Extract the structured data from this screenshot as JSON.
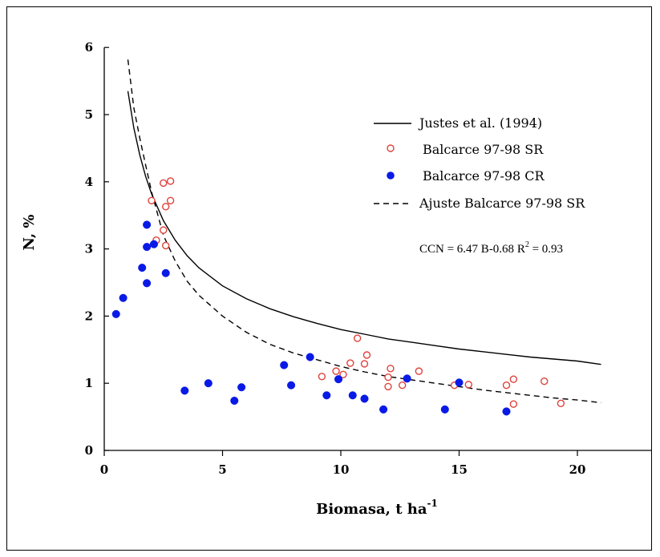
{
  "chart_data": {
    "type": "scatter",
    "xlabel": "Biomasa, t ha",
    "xlabel_sup": "-1",
    "ylabel": "N,  %",
    "xlim": [
      0,
      23
    ],
    "ylim": [
      0,
      6
    ],
    "xticks": [
      0,
      5,
      10,
      15,
      20
    ],
    "yticks": [
      0,
      1,
      2,
      3,
      4,
      5,
      6
    ],
    "grid": false,
    "legend_position": "top-right",
    "colors": {
      "sr": "#e0413a",
      "cr": "#0a1ae6",
      "line": "#000000"
    },
    "series": [
      {
        "name": "Justes et al. (1994)",
        "kind": "solid-line",
        "x": [
          1.0,
          1.25,
          1.5,
          1.75,
          2.0,
          2.5,
          3.0,
          3.5,
          4.0,
          5.0,
          6.0,
          7.0,
          8.0,
          9.0,
          10.0,
          11.0,
          12.0,
          13.0,
          14.0,
          15.0,
          16.0,
          17.0,
          18.0,
          19.0,
          20.0,
          21.0
        ],
        "y": [
          5.35,
          4.8,
          4.4,
          4.08,
          3.82,
          3.42,
          3.13,
          2.9,
          2.72,
          2.45,
          2.26,
          2.11,
          1.99,
          1.89,
          1.8,
          1.73,
          1.66,
          1.61,
          1.56,
          1.51,
          1.47,
          1.43,
          1.39,
          1.36,
          1.33,
          1.28
        ]
      },
      {
        "name": "Balcarce 97-98 SR",
        "kind": "open-circle",
        "x": [
          2.0,
          2.1,
          2.5,
          2.8,
          2.6,
          2.8,
          2.5,
          2.2,
          2.6,
          10.7,
          11.1,
          10.4,
          9.8,
          10.1,
          11.0,
          9.2,
          12.1,
          12.0,
          13.3,
          12.0,
          12.6,
          14.8,
          15.4,
          17.3,
          17.0,
          18.6,
          17.3,
          19.3
        ],
        "y": [
          3.72,
          3.07,
          3.98,
          4.01,
          3.63,
          3.72,
          3.28,
          3.13,
          3.05,
          1.67,
          1.42,
          1.3,
          1.18,
          1.13,
          1.29,
          1.1,
          1.22,
          1.09,
          1.18,
          0.95,
          0.97,
          0.97,
          0.98,
          1.06,
          0.97,
          1.03,
          0.69,
          0.7
        ]
      },
      {
        "name": "Balcarce 97-98 CR",
        "kind": "filled-circle",
        "x": [
          0.5,
          0.8,
          1.8,
          1.8,
          2.1,
          1.6,
          1.8,
          2.6,
          3.4,
          4.4,
          5.5,
          5.8,
          7.6,
          7.9,
          8.7,
          9.4,
          9.9,
          10.5,
          11.0,
          11.8,
          12.8,
          14.4,
          15.0,
          17.0
        ],
        "y": [
          2.03,
          2.27,
          3.36,
          3.03,
          3.07,
          2.72,
          2.49,
          2.64,
          0.89,
          1.0,
          0.74,
          0.94,
          1.27,
          0.97,
          1.39,
          0.82,
          1.06,
          0.82,
          0.77,
          0.61,
          1.07,
          0.61,
          1.01,
          0.58
        ]
      },
      {
        "name": "Ajuste Balcarce 97-98 SR",
        "kind": "dashed-line",
        "x": [
          1.0,
          1.25,
          1.5,
          1.75,
          2.0,
          2.5,
          3.0,
          3.5,
          4.0,
          5.0,
          6.0,
          7.0,
          8.0,
          9.0,
          10.0,
          11.0,
          12.0,
          13.0,
          14.0,
          15.0,
          16.0,
          17.0,
          18.0,
          19.0,
          20.0,
          21.0
        ],
        "y": [
          5.82,
          5.1,
          4.65,
          4.25,
          3.85,
          3.2,
          2.82,
          2.52,
          2.31,
          2.0,
          1.76,
          1.58,
          1.45,
          1.35,
          1.25,
          1.17,
          1.1,
          1.05,
          1.0,
          0.95,
          0.9,
          0.86,
          0.82,
          0.78,
          0.75,
          0.71
        ]
      }
    ],
    "annotation": {
      "text_before": "CCN = 6.47 B",
      "exponent": "-0.68",
      "text_mid": " R",
      "r2_sup": "2",
      "text_after": " = 0.93"
    }
  }
}
